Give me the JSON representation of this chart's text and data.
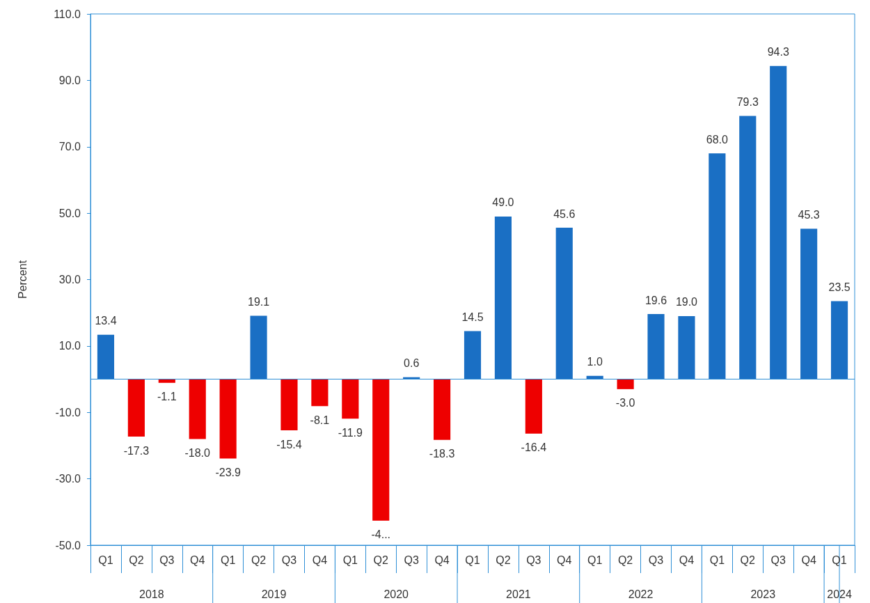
{
  "chart_data": {
    "type": "bar",
    "ylabel": "Percent",
    "categories": [
      "Q1",
      "Q2",
      "Q3",
      "Q4",
      "Q1",
      "Q2",
      "Q3",
      "Q4",
      "Q1",
      "Q2",
      "Q3",
      "Q4",
      "Q1",
      "Q2",
      "Q3",
      "Q4",
      "Q1",
      "Q2",
      "Q3",
      "Q4",
      "Q1",
      "Q2",
      "Q3",
      "Q4",
      "Q1"
    ],
    "values": [
      13.4,
      -17.3,
      -1.1,
      -18.0,
      -23.9,
      19.1,
      -15.4,
      -8.1,
      -11.9,
      -42.6,
      0.6,
      -18.3,
      14.5,
      49.0,
      -16.4,
      45.6,
      1.0,
      -3.0,
      19.6,
      19.0,
      68.0,
      79.3,
      94.3,
      45.3,
      23.5
    ],
    "value_labels": [
      "13.4",
      "-17.3",
      "-1.1",
      "-18.0",
      "-23.9",
      "19.1",
      "-15.4",
      "-8.1",
      "-11.9",
      "-4...",
      "0.6",
      "-18.3",
      "14.5",
      "49.0",
      "-16.4",
      "45.6",
      "1.0",
      "-3.0",
      "19.6",
      "19.0",
      "68.0",
      "79.3",
      "94.3",
      "45.3",
      "23.5"
    ],
    "colors": [
      "#1a6fc4",
      "#ee0000",
      "#ee0000",
      "#ee0000",
      "#ee0000",
      "#1a6fc4",
      "#ee0000",
      "#ee0000",
      "#ee0000",
      "#ee0000",
      "#1a6fc4",
      "#ee0000",
      "#1a6fc4",
      "#1a6fc4",
      "#ee0000",
      "#1a6fc4",
      "#1a6fc4",
      "#ee0000",
      "#1a6fc4",
      "#1a6fc4",
      "#1a6fc4",
      "#1a6fc4",
      "#1a6fc4",
      "#1a6fc4",
      "#1a6fc4"
    ],
    "annotations": [
      "2018",
      "2019",
      "2020",
      "2021",
      "2022",
      "2023",
      "2024"
    ],
    "ylim": [
      -50,
      110
    ],
    "yticks": [
      {
        "value": -50,
        "label": "-50.0"
      },
      {
        "value": -30,
        "label": "-30.0"
      },
      {
        "value": -10,
        "label": "-10.0"
      },
      {
        "value": 10,
        "label": "10.0"
      },
      {
        "value": 30,
        "label": "30.0"
      },
      {
        "value": 50,
        "label": "50.0"
      },
      {
        "value": 70,
        "label": "70.0"
      },
      {
        "value": 90,
        "label": "90.0"
      },
      {
        "value": 110,
        "label": "110.0"
      }
    ],
    "ref_lines": [
      {
        "axis": "y",
        "value": 0,
        "color": "#2e8fd6"
      }
    ],
    "grid": false
  }
}
